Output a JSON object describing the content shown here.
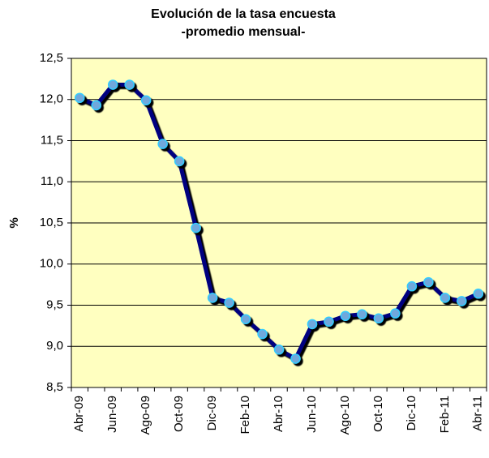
{
  "chart_data": {
    "type": "line",
    "title": "Evolución de la tasa encuesta",
    "subtitle": "-promedio mensual-",
    "y_label": "%",
    "categories": [
      "Abr-09",
      null,
      "Jun-09",
      null,
      "Ago-09",
      null,
      "Oct-09",
      null,
      "Dic-09",
      null,
      "Feb-10",
      null,
      "Abr-10",
      null,
      "Jun-10",
      null,
      "Ago-10",
      null,
      "Oct-10",
      null,
      "Dic-10",
      null,
      "Feb-11",
      null,
      "Abr-11"
    ],
    "series": [
      {
        "color": "#000080",
        "marker_color": "#6fa8dc",
        "values": [
          12.02,
          11.93,
          12.18,
          12.18,
          11.99,
          11.46,
          11.25,
          10.44,
          9.59,
          9.53,
          9.33,
          9.15,
          8.96,
          8.85,
          9.27,
          9.3,
          9.37,
          9.39,
          9.34,
          9.4,
          9.73,
          9.78,
          9.59,
          9.55,
          9.64
        ]
      }
    ],
    "ylim": [
      8.5,
      12.5
    ],
    "yticks": [
      {
        "value": 8.5,
        "label": "8,5"
      },
      {
        "value": 9.0,
        "label": "9,0"
      },
      {
        "value": 9.5,
        "label": "9,5"
      },
      {
        "value": 10.0,
        "label": "10,0"
      },
      {
        "value": 10.5,
        "label": "10,5"
      },
      {
        "value": 11.0,
        "label": "11,0"
      },
      {
        "value": 11.5,
        "label": "11,5"
      },
      {
        "value": 12.0,
        "label": "12,0"
      },
      {
        "value": 12.5,
        "label": "12,5"
      }
    ],
    "grid": true,
    "plot_background": "#ffffc0"
  }
}
